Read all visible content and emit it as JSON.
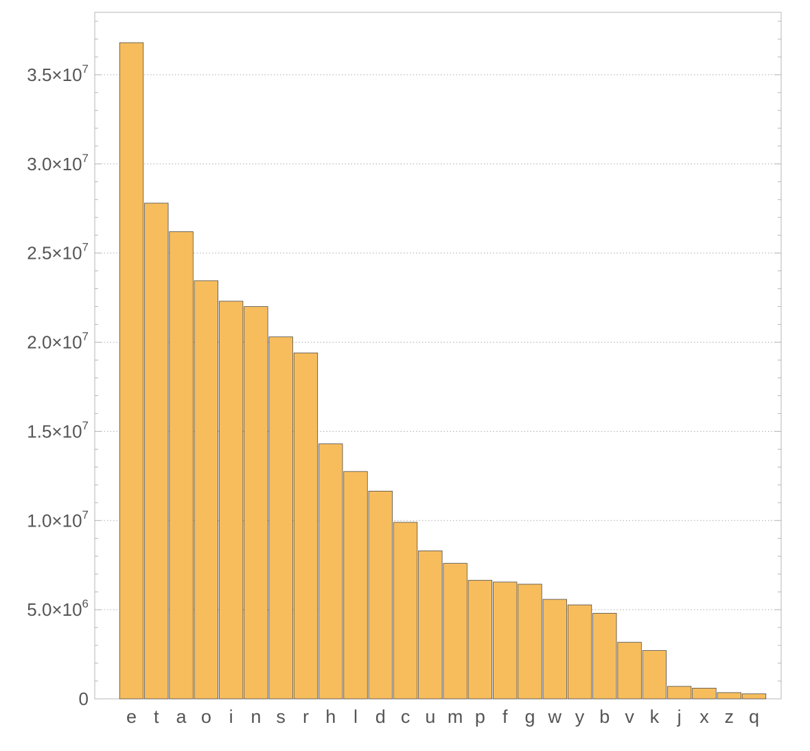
{
  "chart_data": {
    "type": "bar",
    "title": "",
    "xlabel": "",
    "ylabel": "",
    "categories": [
      "e",
      "t",
      "a",
      "o",
      "i",
      "n",
      "s",
      "r",
      "h",
      "l",
      "d",
      "c",
      "u",
      "m",
      "p",
      "f",
      "g",
      "w",
      "y",
      "b",
      "v",
      "k",
      "j",
      "x",
      "z",
      "q"
    ],
    "values": [
      36800000,
      27800000,
      26200000,
      23450000,
      22300000,
      22000000,
      20300000,
      19400000,
      14300000,
      12750000,
      11650000,
      9900000,
      8300000,
      7600000,
      6650000,
      6550000,
      6430000,
      5580000,
      5270000,
      4800000,
      3170000,
      2710000,
      700000,
      600000,
      350000,
      280000
    ],
    "ylim": [
      0,
      38500000
    ],
    "yticks": [
      {
        "value": 0,
        "mantissa": "0",
        "exp": ""
      },
      {
        "value": 5000000,
        "mantissa": "5.0",
        "exp": "6"
      },
      {
        "value": 10000000,
        "mantissa": "1.0",
        "exp": "7"
      },
      {
        "value": 15000000,
        "mantissa": "1.5",
        "exp": "7"
      },
      {
        "value": 20000000,
        "mantissa": "2.0",
        "exp": "7"
      },
      {
        "value": 25000000,
        "mantissa": "2.5",
        "exp": "7"
      },
      {
        "value": 30000000,
        "mantissa": "3.0",
        "exp": "7"
      },
      {
        "value": 35000000,
        "mantissa": "3.5",
        "exp": "7"
      }
    ],
    "grid": "horizontal-dotted",
    "bar_color": "#f7bd5d",
    "bar_edge_color": "#4a4a4a",
    "legend": "none"
  }
}
